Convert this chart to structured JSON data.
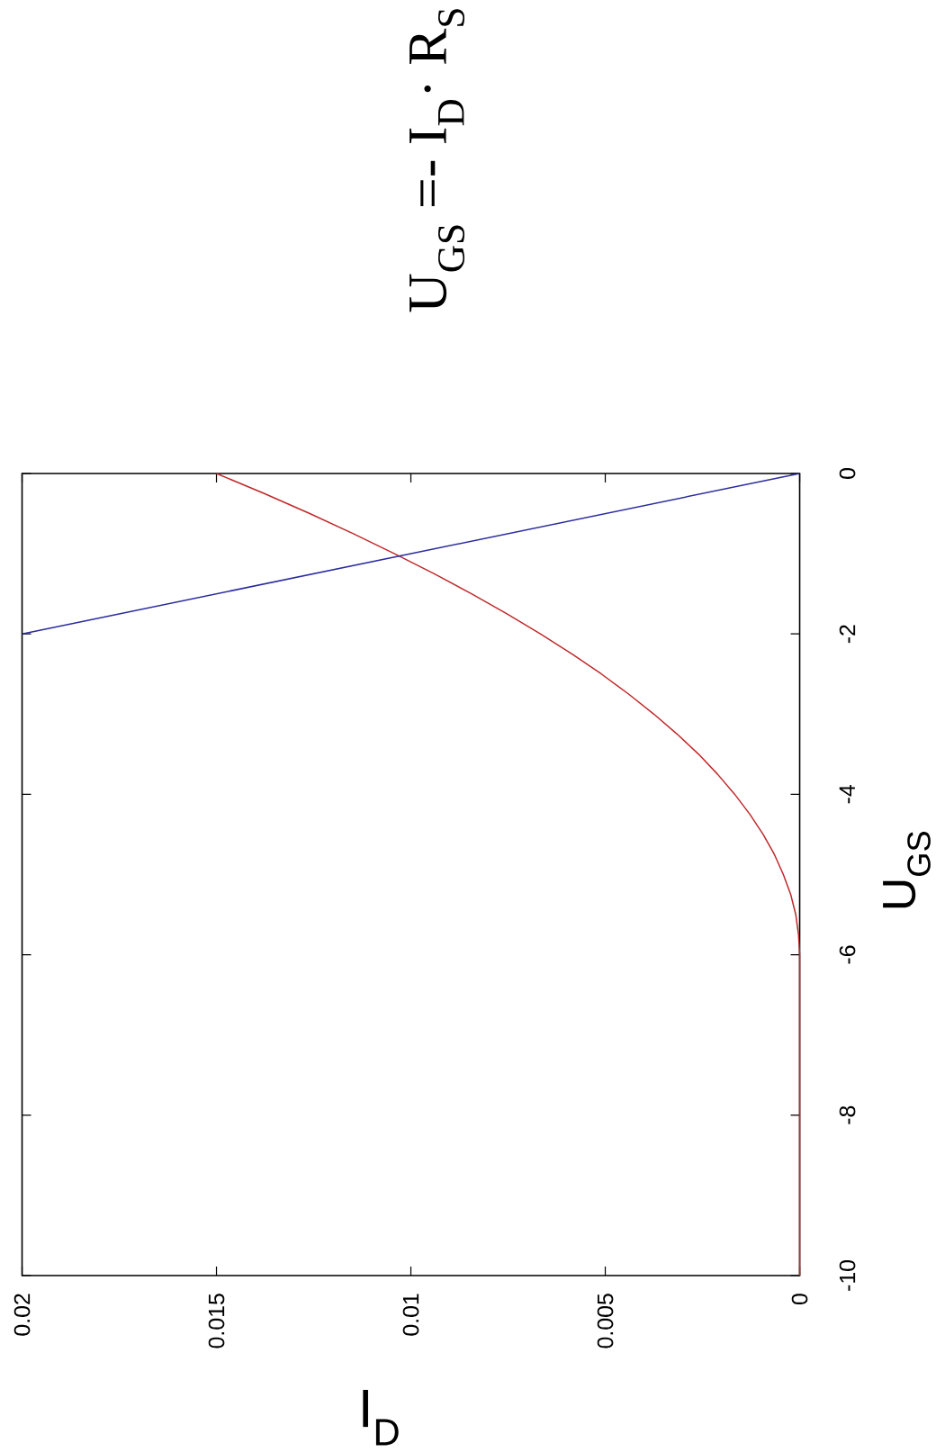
{
  "chart_data": {
    "type": "line",
    "title": "U$_{GS}$ =- I$_{D}$· R$_{S}$",
    "xlabel": "I$_{D}$",
    "ylabel": "U$_{GS}$",
    "series": [
      {
        "color": "#c0282a",
        "x": [
          0,
          0,
          3e-05,
          0.0001,
          0.00023,
          0.00042,
          0.00065,
          0.00094,
          0.00128,
          0.00167,
          0.00211,
          0.0026,
          0.00315,
          0.00375,
          0.0044,
          0.0051,
          0.00586,
          0.00667,
          0.00753,
          0.00844,
          0.0094,
          0.01042,
          0.01148,
          0.0126,
          0.01377,
          0.015
        ],
        "values": [
          -10,
          -6,
          -5.75,
          -5.5,
          -5.25,
          -5,
          -4.75,
          -4.5,
          -4.25,
          -4,
          -3.75,
          -3.5,
          -3.25,
          -3,
          -2.75,
          -2.5,
          -2.25,
          -2,
          -1.75,
          -1.5,
          -1.25,
          -1,
          -0.75,
          -0.5,
          -0.25,
          0
        ]
      },
      {
        "color": "#2b2b9e",
        "x": [
          0.02,
          0
        ],
        "values": [
          -2,
          0
        ]
      }
    ],
    "xlim": [
      0.02,
      0
    ],
    "ylim": [
      -10,
      0
    ],
    "xticks": [
      0.02,
      0.015,
      0.01,
      0.005,
      0
    ],
    "yticks": [
      -10,
      -8,
      -6,
      -4,
      -2,
      0
    ]
  }
}
